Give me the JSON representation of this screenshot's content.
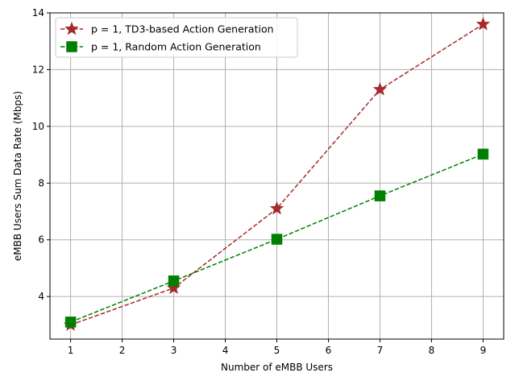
{
  "chart_data": {
    "type": "line",
    "title": "",
    "xlabel": "Number of eMBB Users",
    "ylabel": "eMBB Users Sum Data Rate (Mbps)",
    "xlim": [
      0.6,
      9.4
    ],
    "ylim": [
      2.5,
      14.0
    ],
    "xticks": [
      1,
      2,
      3,
      4,
      5,
      6,
      7,
      8,
      9
    ],
    "yticks": [
      4,
      6,
      8,
      10,
      12,
      14
    ],
    "grid": true,
    "legend_position": "upper-left",
    "series": [
      {
        "name": "p = 1, TD3-based Action Generation",
        "x": [
          1,
          3,
          5,
          7,
          9
        ],
        "y": [
          3.0,
          4.3,
          7.1,
          11.3,
          13.6
        ],
        "color": "#a52a2a",
        "marker": "star",
        "linestyle": "dashed"
      },
      {
        "name": "p = 1, Random Action Generation",
        "x": [
          1,
          3,
          5,
          7,
          9
        ],
        "y": [
          3.1,
          4.55,
          6.02,
          7.55,
          9.02
        ],
        "color": "#008000",
        "marker": "square",
        "linestyle": "dashed"
      }
    ]
  }
}
